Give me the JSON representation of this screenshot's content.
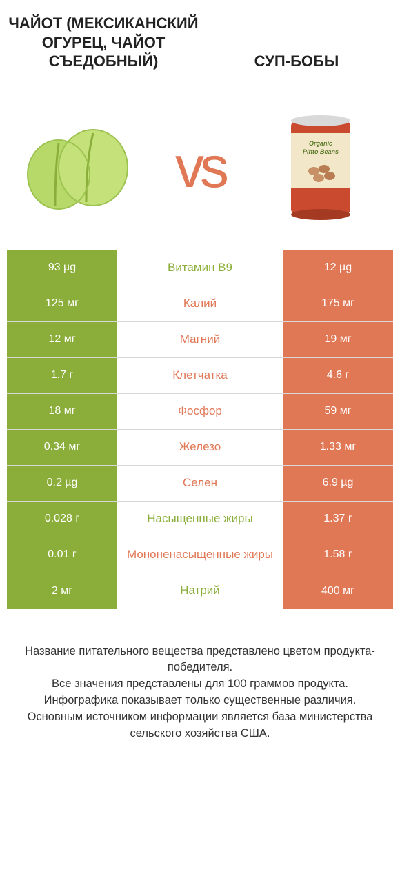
{
  "colors": {
    "left": "#8bae3a",
    "right": "#e07856",
    "text": "#333333",
    "border": "#d8d8d8",
    "bg": "#ffffff"
  },
  "header": {
    "left_title": "ЧАЙОТ (МЕКСИКАНСКИЙ ОГУРЕЦ, ЧАЙОТ СЪЕДОБНЫЙ)",
    "right_title": "СУП-БОБЫ"
  },
  "vs": "vs",
  "rows": [
    {
      "left": "93 µg",
      "label": "Витамин B9",
      "right": "12 µg",
      "winner": "left"
    },
    {
      "left": "125 мг",
      "label": "Калий",
      "right": "175 мг",
      "winner": "right"
    },
    {
      "left": "12 мг",
      "label": "Магний",
      "right": "19 мг",
      "winner": "right"
    },
    {
      "left": "1.7 г",
      "label": "Клетчатка",
      "right": "4.6 г",
      "winner": "right"
    },
    {
      "left": "18 мг",
      "label": "Фосфор",
      "right": "59 мг",
      "winner": "right"
    },
    {
      "left": "0.34 мг",
      "label": "Железо",
      "right": "1.33 мг",
      "winner": "right"
    },
    {
      "left": "0.2 µg",
      "label": "Селен",
      "right": "6.9 µg",
      "winner": "right"
    },
    {
      "left": "0.028 г",
      "label": "Насыщенные жиры",
      "right": "1.37 г",
      "winner": "left"
    },
    {
      "left": "0.01 г",
      "label": "Мононенасыщенные жиры",
      "right": "1.58 г",
      "winner": "right"
    },
    {
      "left": "2 мг",
      "label": "Натрий",
      "right": "400 мг",
      "winner": "left"
    }
  ],
  "footer": {
    "line1": "Название питательного вещества представлено цветом продукта-победителя.",
    "line2": "Все значения представлены для 100 граммов продукта.",
    "line3": "Инфографика показывает только существенные различия.",
    "line4": "Основным источником информации является база министерства сельского хозяйства США."
  }
}
